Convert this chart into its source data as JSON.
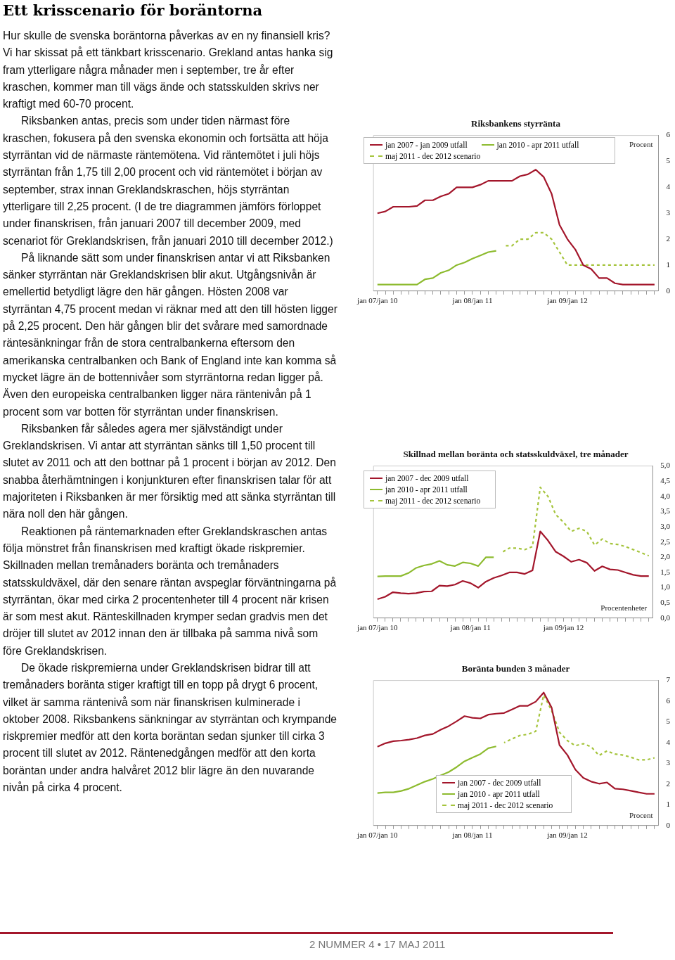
{
  "chart_data": [
    {
      "type": "other",
      "title": "Ett krisscenario för boräntorna",
      "annotations": [
        "Hur skulle de svenska boräntorna påverkas av en ny finansiell kris? Vi har skissat på ett tänkbart krisscenario. Grekland antas hanka sig fram ytterligare några månader men i september, tre år efter kraschen, kommer man till vägs ände och statsskulden skrivs ner kraftigt med 60-70 procent.",
        "Riksbanken antas, precis som under tiden närmast före kraschen, fokusera på den svenska ekonomin och fortsätta att höja styrräntan vid de närmaste räntemötena. Vid räntemötet i juli höjs styrräntan från 1,75 till 2,00 procent och vid räntemötet i början av september, strax innan Greklandskraschen, höjs styrräntan ytterligare till 2,25 procent. (I de tre diagrammen jämförs förloppet under finanskrisen, från januari 2007 till december 2009, med scenariot för Greklandskrisen, från januari 2010 till december 2012.)",
        "På liknande sätt som under finanskrisen antar vi att Riksbanken sänker styrräntan när Greklandskrisen blir akut. Utgångsnivån är emellertid betydligt lägre den här gången. Hösten 2008 var styrräntan 4,75 procent medan vi räknar med att den till hösten ligger på 2,25 procent. Den här gången blir det svårare med samordnade räntesänkningar från de stora centralbankerna eftersom den amerikanska centralbanken och Bank of England inte kan komma så mycket lägre än de bottennivåer som styrräntorna redan ligger på. Även den europeiska centralbanken ligger nära räntenivån på 1 procent som var botten för styrräntan under finanskrisen.",
        "Riksbanken får således agera mer självständigt under Greklandskrisen. Vi antar att styrräntan sänks till 1,50 procent till slutet av 2011 och att den bottnar på 1 procent i början av 2012. Den snabba återhämtningen i konjunkturen efter finanskrisen talar för att majoriteten i Riksbanken är mer försiktig med att sänka styrräntan till nära noll den här gången.",
        "Reaktionen på räntemarknaden efter Greklandskraschen antas följa mönstret från finanskrisen med kraftigt ökade riskpremier. Skillnaden mellan tremånaders boränta och tremånaders statsskuldväxel, där den senare räntan avspeglar förväntningarna på styrräntan, ökar med cirka 2 procentenheter till 4 procent när krisen är som mest akut. Ränteskillnaden krymper sedan gradvis men det dröjer till slutet av 2012 innan den är tillbaka på samma nivå som före Greklandskrisen.",
        "De ökade riskpremierna under Greklandskrisen bidrar till att tremånaders boränta stiger kraftigt till en topp på drygt 6 procent, vilket är samma räntenivå som när finanskrisen kulminerade i oktober 2008. Riksbankens sänkningar av styrräntan och krympande riskpremier medför att den korta boräntan sedan sjunker till cirka 3 procent till slutet av 2012. Räntenedgången medför att den korta boräntan under andra halvåret 2012 blir lägre än den nuvarande nivån på cirka 4 procent.",
        "2 NUMMER 4 • 17 MAJ 2011"
      ]
    },
    {
      "type": "line",
      "title": "Riksbankens styrränta",
      "ylabel": "Procent",
      "legend": "top left",
      "categories": [
        "jan 07/jan 10",
        null,
        null,
        null,
        null,
        null,
        null,
        null,
        null,
        null,
        null,
        null,
        "jan 08/jan 11",
        null,
        null,
        null,
        null,
        null,
        null,
        null,
        null,
        null,
        null,
        null,
        "jan 09/jan 12",
        null,
        null,
        null,
        null,
        null,
        null,
        null,
        null,
        null,
        null,
        null
      ],
      "ylim": [
        0,
        6
      ],
      "yticks": [
        0,
        1,
        2,
        3,
        4,
        5,
        6
      ],
      "series": [
        {
          "name": "jan 2007 - jan 2009 utfall",
          "color": "#a3162b",
          "values": [
            3.0,
            3.07,
            3.25,
            3.25,
            3.25,
            3.28,
            3.5,
            3.5,
            3.65,
            3.75,
            4.0,
            4.0,
            4.0,
            4.1,
            4.25,
            4.25,
            4.25,
            4.25,
            4.43,
            4.5,
            4.68,
            4.4,
            3.75,
            2.55,
            2.0,
            1.6,
            1.0,
            0.85,
            0.5,
            0.5,
            0.3,
            0.25,
            0.25,
            0.25,
            0.25,
            0.25
          ]
        },
        {
          "name": "jan 2010 - apr 2011 utfall",
          "color": "#8dbb2f",
          "values": [
            0.25,
            0.25,
            0.25,
            0.25,
            0.25,
            0.25,
            0.45,
            0.5,
            0.7,
            0.8,
            1.0,
            1.1,
            1.25,
            1.37,
            1.5,
            1.55,
            null,
            null,
            null,
            null,
            null,
            null,
            null,
            null,
            null,
            null,
            null,
            null,
            null,
            null,
            null,
            null,
            null,
            null,
            null,
            null
          ]
        },
        {
          "name": "maj 2011 - dec 2012 scenario",
          "color": "#a5c43c",
          "line_style": "dashed",
          "values": [
            null,
            null,
            null,
            null,
            null,
            null,
            null,
            null,
            null,
            null,
            null,
            null,
            null,
            null,
            null,
            null,
            1.75,
            1.75,
            2.0,
            2.0,
            2.25,
            2.25,
            2.0,
            1.5,
            1.0,
            1.0,
            1.0,
            1.0,
            1.0,
            1.0,
            1.0,
            1.0,
            1.0,
            1.0,
            1.0,
            1.0
          ]
        }
      ]
    },
    {
      "type": "line",
      "title": "Skillnad mellan boränta och statsskuldväxel, tre månader",
      "ylabel": "Procentenheter",
      "legend": "top left",
      "categories": [
        "jan 07/jan 10",
        null,
        null,
        null,
        null,
        null,
        null,
        null,
        null,
        null,
        null,
        null,
        "jan 08/jan 11",
        null,
        null,
        null,
        null,
        null,
        null,
        null,
        null,
        null,
        null,
        null,
        "jan 09/jan 12",
        null,
        null,
        null,
        null,
        null,
        null,
        null,
        null,
        null,
        null,
        null
      ],
      "ylim": [
        0,
        5
      ],
      "yticks": [
        {
          "value": 0,
          "label": "0,0"
        },
        {
          "value": 0.5,
          "label": "0,5"
        },
        {
          "value": 1,
          "label": "1,0"
        },
        {
          "value": 1.5,
          "label": "1,5"
        },
        {
          "value": 2,
          "label": "2,0"
        },
        {
          "value": 2.5,
          "label": "2,5"
        },
        {
          "value": 3,
          "label": "3,0"
        },
        {
          "value": 3.5,
          "label": "3,5"
        },
        {
          "value": 4,
          "label": "4,0"
        },
        {
          "value": 4.5,
          "label": "4,5"
        },
        {
          "value": 5,
          "label": "5,0"
        }
      ],
      "series": [
        {
          "name": "jan 2007 - dec 2009 utfall",
          "color": "#a3162b",
          "values": [
            0.62,
            0.7,
            0.85,
            0.82,
            0.8,
            0.82,
            0.87,
            0.88,
            1.07,
            1.05,
            1.1,
            1.22,
            1.15,
            1.0,
            1.2,
            1.32,
            1.4,
            1.5,
            1.5,
            1.45,
            1.57,
            2.85,
            2.55,
            2.18,
            2.03,
            1.85,
            1.92,
            1.82,
            1.55,
            1.7,
            1.6,
            1.58,
            1.5,
            1.42,
            1.38,
            1.38
          ]
        },
        {
          "name": "jan 2010 - apr 2011 utfall",
          "color": "#8dbb2f",
          "values": [
            1.37,
            1.38,
            1.38,
            1.38,
            1.48,
            1.65,
            1.73,
            1.78,
            1.88,
            1.75,
            1.71,
            1.83,
            1.8,
            1.71,
            2.0,
            2.0,
            null,
            null,
            null,
            null,
            null,
            null,
            null,
            null,
            null,
            null,
            null,
            null,
            null,
            null,
            null,
            null,
            null,
            null,
            null,
            null
          ]
        },
        {
          "name": "maj 2011 - dec 2012 scenario",
          "color": "#a5c43c",
          "line_style": "dashed",
          "values": [
            null,
            null,
            null,
            null,
            null,
            null,
            null,
            null,
            null,
            null,
            null,
            null,
            null,
            null,
            null,
            null,
            2.15,
            2.3,
            2.3,
            2.25,
            2.35,
            4.3,
            4.0,
            3.4,
            3.15,
            2.85,
            2.95,
            2.85,
            2.4,
            2.6,
            2.45,
            2.42,
            2.35,
            2.25,
            2.15,
            2.05
          ]
        }
      ]
    },
    {
      "type": "line",
      "title": "Boränta bunden 3 månader",
      "ylabel": "Procent",
      "legend": "bottom",
      "categories": [
        "jan 07/jan 10",
        null,
        null,
        null,
        null,
        null,
        null,
        null,
        null,
        null,
        null,
        null,
        "jan 08/jan 11",
        null,
        null,
        null,
        null,
        null,
        null,
        null,
        null,
        null,
        null,
        null,
        "jan 09/jan 12",
        null,
        null,
        null,
        null,
        null,
        null,
        null,
        null,
        null,
        null,
        null
      ],
      "ylim": [
        0,
        7
      ],
      "yticks": [
        0,
        1,
        2,
        3,
        4,
        5,
        6,
        7
      ],
      "series": [
        {
          "name": "jan 2007 - dec 2009 utfall",
          "color": "#a3162b",
          "values": [
            3.8,
            3.97,
            4.07,
            4.1,
            4.15,
            4.22,
            4.35,
            4.42,
            4.63,
            4.8,
            5.03,
            5.28,
            5.2,
            5.17,
            5.35,
            5.4,
            5.43,
            5.6,
            5.78,
            5.78,
            5.98,
            6.42,
            5.7,
            3.88,
            3.4,
            2.7,
            2.3,
            2.12,
            2.02,
            2.08,
            1.78,
            1.75,
            1.68,
            1.6,
            1.53,
            1.53
          ]
        },
        {
          "name": "jan 2010 - apr 2011 utfall",
          "color": "#8dbb2f",
          "values": [
            1.57,
            1.6,
            1.6,
            1.67,
            1.78,
            1.95,
            2.12,
            2.25,
            2.42,
            2.58,
            2.82,
            3.1,
            3.28,
            3.45,
            3.73,
            3.82,
            null,
            null,
            null,
            null,
            null,
            null,
            null,
            null,
            null,
            null,
            null,
            null,
            null,
            null,
            null,
            null,
            null,
            null,
            null,
            null
          ]
        },
        {
          "name": "maj 2011 - dec 2012 scenario",
          "color": "#a5c43c",
          "line_style": "dashed",
          "values": [
            null,
            null,
            null,
            null,
            null,
            null,
            null,
            null,
            null,
            null,
            null,
            null,
            null,
            null,
            null,
            null,
            4.0,
            4.18,
            4.35,
            4.4,
            4.55,
            6.3,
            5.55,
            4.5,
            4.1,
            3.85,
            3.95,
            3.8,
            3.38,
            3.6,
            3.45,
            3.4,
            3.3,
            3.17,
            3.17,
            3.27
          ]
        }
      ]
    }
  ]
}
